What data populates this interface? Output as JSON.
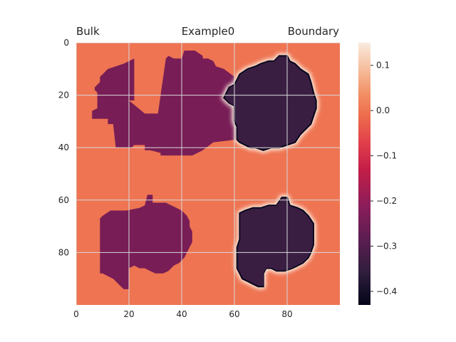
{
  "chart_data": {
    "type": "heatmap",
    "title_left": "Bulk",
    "title_center": "Example0",
    "title_right": "Boundary",
    "xlim": [
      0,
      100
    ],
    "ylim": [
      100,
      0
    ],
    "x_ticks": [
      {
        "value": 0,
        "label": "0"
      },
      {
        "value": 20,
        "label": "20"
      },
      {
        "value": 40,
        "label": "40"
      },
      {
        "value": 60,
        "label": "60"
      },
      {
        "value": 80,
        "label": "80"
      }
    ],
    "y_ticks": [
      {
        "value": 0,
        "label": "0"
      },
      {
        "value": 20,
        "label": "20"
      },
      {
        "value": 40,
        "label": "40"
      },
      {
        "value": 60,
        "label": "60"
      },
      {
        "value": 80,
        "label": "80"
      }
    ],
    "grid": true,
    "background_value": 0.0,
    "colorbar": {
      "min": -0.43,
      "max": 0.15,
      "ticks": [
        {
          "value": 0.1,
          "label": "0.1"
        },
        {
          "value": 0.0,
          "label": "0.0"
        },
        {
          "value": -0.1,
          "label": "−0.1"
        },
        {
          "value": -0.2,
          "label": "−0.2"
        },
        {
          "value": -0.3,
          "label": "−0.3"
        },
        {
          "value": -0.4,
          "label": "−0.4"
        }
      ]
    },
    "regions": [
      {
        "value": -0.24,
        "boundary": false,
        "outline": [
          [
            20,
            22
          ],
          [
            26,
            27
          ],
          [
            31,
            27
          ],
          [
            34,
            6
          ],
          [
            35,
            5
          ],
          [
            37,
            6
          ],
          [
            40,
            6
          ],
          [
            41,
            3
          ],
          [
            45,
            3
          ],
          [
            48,
            5
          ],
          [
            48,
            6
          ],
          [
            50,
            6
          ],
          [
            52,
            7
          ],
          [
            53,
            9
          ],
          [
            56,
            10
          ],
          [
            60,
            13
          ],
          [
            60,
            16
          ],
          [
            64,
            17
          ],
          [
            64,
            20
          ],
          [
            67,
            21
          ],
          [
            67,
            30
          ],
          [
            64,
            31
          ],
          [
            64,
            34
          ],
          [
            62,
            35
          ],
          [
            60,
            37
          ],
          [
            52,
            38
          ],
          [
            48,
            41
          ],
          [
            44,
            43
          ],
          [
            32,
            43
          ],
          [
            32,
            42
          ],
          [
            28,
            41
          ],
          [
            26,
            41
          ],
          [
            26,
            39
          ],
          [
            22,
            39
          ],
          [
            21,
            40
          ],
          [
            15,
            40
          ],
          [
            14,
            31
          ],
          [
            12,
            31
          ],
          [
            12,
            29
          ],
          [
            6,
            29
          ],
          [
            6,
            26
          ],
          [
            8,
            25
          ],
          [
            8,
            19
          ],
          [
            7,
            18
          ],
          [
            7,
            17
          ],
          [
            8,
            16
          ],
          [
            9,
            15
          ],
          [
            9,
            13
          ],
          [
            10,
            12
          ],
          [
            11,
            11
          ],
          [
            12,
            10
          ],
          [
            15,
            9
          ],
          [
            18,
            8
          ],
          [
            20,
            7
          ],
          [
            22,
            6
          ],
          [
            22,
            5
          ],
          [
            22,
            22
          ]
        ]
      },
      {
        "value": -0.24,
        "boundary": false,
        "outline": [
          [
            9,
            67
          ],
          [
            10,
            66
          ],
          [
            13,
            64
          ],
          [
            19,
            64
          ],
          [
            24,
            63
          ],
          [
            26,
            62
          ],
          [
            27,
            58
          ],
          [
            29,
            58
          ],
          [
            29,
            61
          ],
          [
            34,
            61
          ],
          [
            38,
            63
          ],
          [
            40,
            64
          ],
          [
            42,
            66
          ],
          [
            43,
            68
          ],
          [
            43,
            70
          ],
          [
            44,
            72
          ],
          [
            44,
            74
          ],
          [
            44,
            76
          ],
          [
            43,
            78
          ],
          [
            42,
            80
          ],
          [
            41,
            82
          ],
          [
            39,
            84
          ],
          [
            37,
            85
          ],
          [
            35,
            87
          ],
          [
            33,
            88
          ],
          [
            30,
            88
          ],
          [
            28,
            87
          ],
          [
            26,
            86
          ],
          [
            24,
            86
          ],
          [
            22,
            85
          ],
          [
            20,
            86
          ],
          [
            20,
            94
          ],
          [
            18,
            94
          ],
          [
            17,
            93
          ],
          [
            16,
            92
          ],
          [
            15,
            91
          ],
          [
            14,
            90
          ],
          [
            12,
            89
          ],
          [
            10,
            88
          ],
          [
            9,
            88
          ],
          [
            9,
            80
          ],
          [
            9,
            67
          ]
        ]
      },
      {
        "value": -0.34,
        "boundary": true,
        "outline": [
          [
            58,
            17
          ],
          [
            60,
            16
          ],
          [
            62,
            12
          ],
          [
            65,
            10
          ],
          [
            68,
            9
          ],
          [
            70,
            8
          ],
          [
            73,
            7
          ],
          [
            75,
            7
          ],
          [
            77,
            5
          ],
          [
            80,
            5
          ],
          [
            81,
            7
          ],
          [
            83,
            8
          ],
          [
            85,
            10
          ],
          [
            88,
            12
          ],
          [
            89,
            15
          ],
          [
            90,
            19
          ],
          [
            91,
            22
          ],
          [
            91,
            25
          ],
          [
            90,
            28
          ],
          [
            89,
            31
          ],
          [
            87,
            33
          ],
          [
            85,
            35
          ],
          [
            83,
            38
          ],
          [
            80,
            39
          ],
          [
            77,
            40
          ],
          [
            74,
            40
          ],
          [
            71,
            41
          ],
          [
            68,
            40
          ],
          [
            66,
            40
          ],
          [
            64,
            39
          ],
          [
            62,
            38
          ],
          [
            61,
            37
          ],
          [
            61,
            32
          ],
          [
            60,
            30
          ],
          [
            60,
            27
          ],
          [
            60,
            24
          ],
          [
            58,
            23
          ],
          [
            56,
            21
          ],
          [
            57,
            19
          ],
          [
            58,
            17
          ]
        ]
      },
      {
        "value": -0.34,
        "boundary": true,
        "outline": [
          [
            62,
            65
          ],
          [
            64,
            64
          ],
          [
            67,
            63
          ],
          [
            70,
            63
          ],
          [
            73,
            62
          ],
          [
            76,
            62
          ],
          [
            78,
            59
          ],
          [
            80,
            59
          ],
          [
            81,
            62
          ],
          [
            84,
            63
          ],
          [
            86,
            64
          ],
          [
            88,
            66
          ],
          [
            90,
            69
          ],
          [
            90,
            73
          ],
          [
            90,
            77
          ],
          [
            89,
            80
          ],
          [
            88,
            82
          ],
          [
            86,
            84
          ],
          [
            84,
            85
          ],
          [
            82,
            86
          ],
          [
            79,
            87
          ],
          [
            76,
            87
          ],
          [
            74,
            86
          ],
          [
            72,
            86
          ],
          [
            71,
            88
          ],
          [
            71,
            93
          ],
          [
            69,
            93
          ],
          [
            67,
            92
          ],
          [
            65,
            91
          ],
          [
            63,
            90
          ],
          [
            62,
            88
          ],
          [
            61,
            86
          ],
          [
            61,
            83
          ],
          [
            61,
            78
          ],
          [
            62,
            75
          ],
          [
            62,
            70
          ],
          [
            62,
            65
          ]
        ]
      }
    ]
  }
}
